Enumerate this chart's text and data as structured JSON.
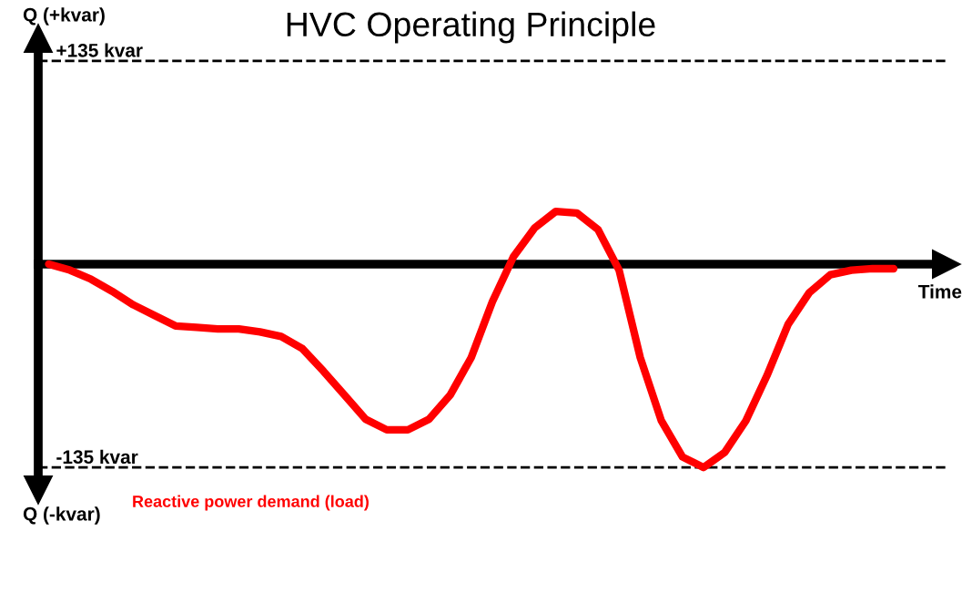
{
  "chart_data": {
    "type": "line",
    "title": "HVC Operating Principle",
    "xlabel": "Time",
    "ylabel": "Q (+kvar)",
    "annotations": [
      "Q (-kvar)"
    ],
    "categories": [
      null,
      null,
      null,
      null,
      null,
      null,
      null,
      null,
      null,
      null,
      null,
      null,
      null,
      null,
      null,
      null,
      null,
      null,
      null,
      null,
      null,
      null,
      null,
      null,
      null,
      null,
      null,
      null,
      null,
      null,
      null,
      null,
      null,
      null,
      null,
      null,
      null,
      null,
      null,
      null,
      null,
      null,
      null
    ],
    "series": [
      {
        "name": "Reactive power demand (load)",
        "color": "#ff0000",
        "values": [
          0,
          -4,
          -10,
          -18,
          -27,
          -34,
          -41,
          -42,
          -43,
          -43,
          -45,
          -48,
          -56,
          -71,
          -87,
          -103,
          -110,
          -110,
          -103,
          -87,
          -62,
          -25,
          5,
          24,
          35,
          34,
          23,
          -4,
          -62,
          -104,
          -128,
          -135,
          -125,
          -104,
          -74,
          -40,
          -19,
          -7,
          -4,
          -3,
          -3,
          null,
          null
        ]
      }
    ],
    "ylim": [
      -150,
      150
    ],
    "yticks": [
      {
        "value": 135,
        "label": "+135 kvar"
      },
      {
        "value": -135,
        "label": "-135 kvar"
      }
    ],
    "ref_lines": [
      {
        "axis": "y",
        "value": 135,
        "color": "#000000",
        "line_style": "dashed"
      },
      {
        "axis": "y",
        "value": -135,
        "color": "#000000",
        "line_style": "dashed"
      }
    ],
    "grid": false,
    "marker": "none",
    "line_style": "solid"
  }
}
